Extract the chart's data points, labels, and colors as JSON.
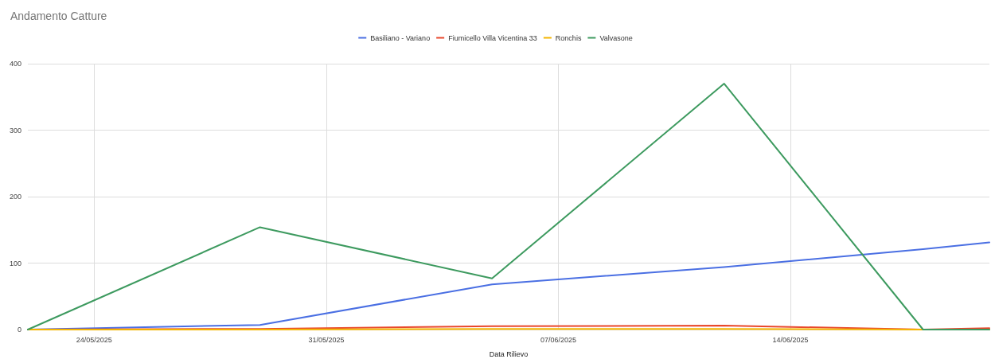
{
  "chart_data": {
    "type": "line",
    "title": "Andamento Catture",
    "xlabel": "Data Rilievo",
    "x": [
      "2025-05-22",
      "2025-05-29",
      "2025-06-05",
      "2025-06-12",
      "2025-06-18",
      "2025-06-20"
    ],
    "series": [
      {
        "name": "Basiliano - Variano",
        "color": "#4a6fe3",
        "values": [
          0,
          7,
          68,
          94,
          121,
          131
        ]
      },
      {
        "name": "Fiumicello Villa Vicentina 33",
        "color": "#e8472b",
        "values": [
          0,
          1,
          5,
          6,
          0,
          2
        ]
      },
      {
        "name": "Ronchis",
        "color": "#f4b400",
        "values": [
          0,
          0,
          1,
          1,
          0,
          0
        ]
      },
      {
        "name": "Valvasone",
        "color": "#3d9a5f",
        "values": [
          0,
          154,
          77,
          370,
          0,
          0
        ]
      }
    ],
    "xlim": [
      "2025-05-22",
      "2025-06-20"
    ],
    "xticks": [
      {
        "value": "2025-05-24",
        "label": "24/05/2025"
      },
      {
        "value": "2025-05-31",
        "label": "31/05/2025"
      },
      {
        "value": "2025-06-07",
        "label": "07/06/2025"
      },
      {
        "value": "2025-06-14",
        "label": "14/06/2025"
      }
    ],
    "ylim": [
      0,
      400
    ],
    "yticks": [
      0,
      100,
      200,
      300,
      400
    ],
    "grid": true,
    "legend": "top",
    "marker": "none",
    "line_style": "solid"
  }
}
